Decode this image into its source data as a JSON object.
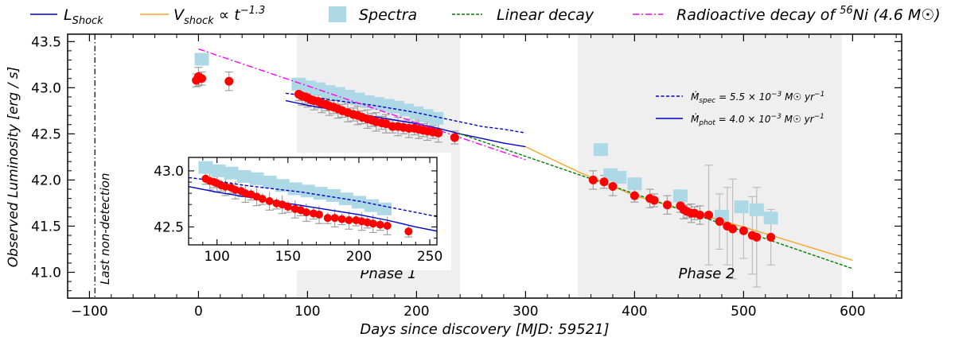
{
  "chart_data": {
    "type": "scatter",
    "title": "",
    "xlabel": "Days since discovery [MJD: 59521]",
    "ylabel": "Observed Luminosity [erg / s]",
    "xlim": [
      -120,
      645
    ],
    "ylim": [
      40.72,
      43.58
    ],
    "xticks": [
      -100,
      0,
      100,
      200,
      300,
      400,
      500,
      600
    ],
    "xtick_labels": [
      "−100",
      "0",
      "100",
      "200",
      "300",
      "400",
      "500",
      "600"
    ],
    "yticks": [
      41.0,
      41.5,
      42.0,
      42.5,
      43.0,
      43.5
    ],
    "ytick_labels": [
      "41.0",
      "41.5",
      "42.0",
      "42.5",
      "43.0",
      "43.5"
    ],
    "legend": [
      {
        "name": "L_Shock",
        "color": "#0000cc",
        "style": "solid"
      },
      {
        "name": "V_shock ∝ t^-1.3",
        "color": "#f5a623",
        "style": "solid"
      },
      {
        "name": "Spectra",
        "color": "#add8e6",
        "style": "square"
      },
      {
        "name": "Linear decay",
        "color": "#008000",
        "style": "dashed"
      },
      {
        "name": "Radioactive decay of 56Ni (4.6 M☉)",
        "color": "#ff00ff",
        "style": "dashdot"
      }
    ],
    "legend_text": {
      "lshock_main": "L",
      "lshock_sub": "Shock",
      "vshock_main": "V",
      "vshock_sub": "shock",
      "vshock_tail": " ∝ t",
      "vshock_exp": "−1.3",
      "spectra": "Spectra",
      "linear": "Linear decay",
      "ni_pre": "Radioactive decay of ",
      "ni_sup": "56",
      "ni_post": "Ni (4.6 M☉)"
    },
    "mdot_legend": {
      "spec_pre": "Ṁ",
      "spec_sub": "spec",
      "spec_eq": " = 5.5 × 10",
      "spec_exp": "−3",
      "spec_unit": " M☉ yr",
      "spec_unit_exp": "−1",
      "phot_pre": "Ṁ",
      "phot_sub": "phot",
      "phot_eq": " = 4.0 × 10",
      "phot_exp": "−3",
      "phot_unit": " M☉ yr",
      "phot_unit_exp": "−1"
    },
    "annotations": {
      "last_nondetection": "Last non-detection",
      "last_nondetection_x": -95,
      "phase1": "Phase 1",
      "phase2": "Phase 2"
    },
    "phase_regions": [
      {
        "name": "Phase 1",
        "x_range": [
          90,
          240
        ]
      },
      {
        "name": "Phase 2",
        "x_range": [
          348,
          590
        ]
      }
    ],
    "series": [
      {
        "name": "Photometry",
        "color": "#ff0000",
        "x": [
          -2,
          0,
          3,
          28,
          92,
          95,
          98,
          100,
          103,
          106,
          110,
          113,
          117,
          120,
          124,
          128,
          132,
          137,
          142,
          146,
          150,
          155,
          159,
          163,
          168,
          172,
          178,
          183,
          188,
          193,
          198,
          202,
          206,
          210,
          215,
          220,
          235,
          362,
          372,
          380,
          400,
          414,
          418,
          430,
          442,
          445,
          448,
          452,
          455,
          460,
          468,
          478,
          485,
          490,
          500,
          508,
          512,
          525
        ],
        "y": [
          43.08,
          43.12,
          43.1,
          43.07,
          42.93,
          42.91,
          42.9,
          42.89,
          42.87,
          42.86,
          42.85,
          42.83,
          42.82,
          42.8,
          42.79,
          42.77,
          42.75,
          42.73,
          42.71,
          42.7,
          42.68,
          42.66,
          42.65,
          42.63,
          42.62,
          42.61,
          42.58,
          42.58,
          42.57,
          42.56,
          42.56,
          42.55,
          42.54,
          42.53,
          42.52,
          42.51,
          42.46,
          42.0,
          41.98,
          41.93,
          41.83,
          41.8,
          41.78,
          41.73,
          41.72,
          41.68,
          41.66,
          41.64,
          41.64,
          41.62,
          41.62,
          41.55,
          41.5,
          41.47,
          41.45,
          41.4,
          41.38,
          41.38
        ]
      },
      {
        "name": "Spectra",
        "color": "#add8e6",
        "x": [
          3,
          92,
          101,
          110,
          119,
          128,
          137,
          146,
          155,
          164,
          173,
          182,
          191,
          200,
          209,
          218,
          369,
          378,
          386,
          400,
          442,
          480,
          498,
          512,
          525
        ],
        "y": [
          43.3,
          43.03,
          43.0,
          42.98,
          42.95,
          42.93,
          42.9,
          42.87,
          42.84,
          42.82,
          42.8,
          42.78,
          42.75,
          42.72,
          42.69,
          42.66,
          42.32,
          42.05,
          42.02,
          41.95,
          41.82,
          41.6,
          41.7,
          41.67,
          41.58
        ]
      },
      {
        "name": "L_Shock",
        "color": "#0000cc",
        "x": [
          80,
          100,
          120,
          140,
          160,
          180,
          200,
          220,
          240,
          260,
          280,
          300
        ],
        "y": [
          42.86,
          42.81,
          42.77,
          42.73,
          42.69,
          42.65,
          42.61,
          42.56,
          42.5,
          42.45,
          42.4,
          42.36
        ]
      },
      {
        "name": "Mdot_spec",
        "color": "#0000cc",
        "x": [
          80,
          100,
          120,
          140,
          160,
          180,
          200,
          220,
          240,
          260,
          280,
          300
        ],
        "y": [
          42.94,
          42.91,
          42.87,
          42.84,
          42.81,
          42.77,
          42.73,
          42.68,
          42.63,
          42.58,
          42.55,
          42.51
        ]
      },
      {
        "name": "V_shock",
        "color": "#f5a623",
        "x": [
          300,
          350,
          400,
          450,
          500,
          550,
          600
        ],
        "y": [
          42.36,
          42.08,
          41.83,
          41.66,
          41.49,
          41.31,
          41.13
        ]
      },
      {
        "name": "Linear decay",
        "color": "#008000",
        "x": [
          240,
          600
        ],
        "y": [
          42.5,
          41.04
        ]
      },
      {
        "name": "Radioactive decay",
        "color": "#ff00ff",
        "x": [
          0,
          300
        ],
        "y": [
          43.42,
          42.22
        ]
      }
    ],
    "inset": {
      "xlim": [
        80,
        255
      ],
      "ylim": [
        42.34,
        43.12
      ],
      "xticks": [
        100,
        150,
        200,
        250
      ],
      "xtick_labels": [
        "100",
        "150",
        "200",
        "250"
      ],
      "yticks": [
        42.5,
        43.0
      ],
      "ytick_labels": [
        "42.5",
        "43.0"
      ]
    }
  }
}
